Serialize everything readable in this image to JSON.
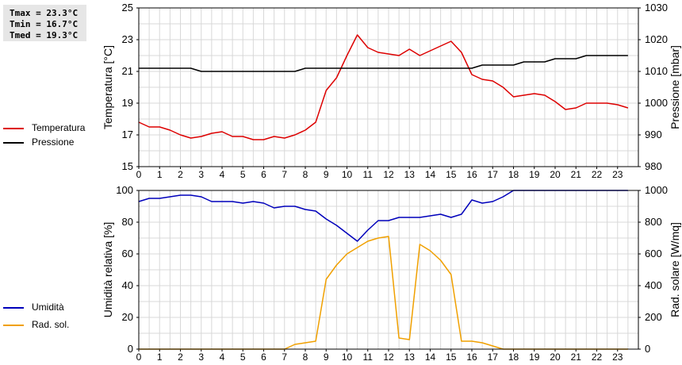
{
  "stats": {
    "tmax": "Tmax = 23.3°C",
    "tmin": "Tmin = 16.7°C",
    "tmed": "Tmed = 19.3°C"
  },
  "legend_top": [
    {
      "label": "Temperatura",
      "color": "#dd0000"
    },
    {
      "label": "Pressione",
      "color": "#000000"
    }
  ],
  "legend_bottom": [
    {
      "label": "Umidità",
      "color": "#0000bb"
    },
    {
      "label": "Rad. sol.",
      "color": "#f0a000"
    }
  ],
  "chart_data": [
    {
      "type": "line",
      "title": "",
      "xlabel": "",
      "ylabel": "Temperatura [°C]",
      "y2label": "Pressione [mbar]",
      "xlim": [
        0,
        24
      ],
      "ylim": [
        15,
        25
      ],
      "y2lim": [
        980,
        1030
      ],
      "xticks": [
        "0",
        "1",
        "2",
        "3",
        "4",
        "5",
        "6",
        "7",
        "8",
        "9",
        "10",
        "11",
        "12",
        "13",
        "14",
        "15",
        "16",
        "17",
        "18",
        "19",
        "20",
        "21",
        "22",
        "23"
      ],
      "yticks": [
        "15",
        "17",
        "19",
        "21",
        "23",
        "25"
      ],
      "y2ticks": [
        "980",
        "990",
        "1000",
        "1010",
        "1020",
        "1030"
      ],
      "grid": true,
      "series": [
        {
          "name": "Temperatura",
          "axis": "left",
          "color": "#dd0000",
          "x": [
            0,
            0.5,
            1,
            1.5,
            2,
            2.5,
            3,
            3.5,
            4,
            4.5,
            5,
            5.5,
            6,
            6.5,
            7,
            7.5,
            8,
            8.5,
            9,
            9.5,
            10,
            10.5,
            11,
            11.5,
            12,
            12.5,
            13,
            13.5,
            14,
            14.5,
            15,
            15.5,
            16,
            16.5,
            17,
            17.5,
            18,
            18.5,
            19,
            19.5,
            20,
            20.5,
            21,
            21.5,
            22,
            22.5,
            23,
            23.5
          ],
          "y": [
            17.8,
            17.5,
            17.5,
            17.3,
            17.0,
            16.8,
            16.9,
            17.1,
            17.2,
            16.9,
            16.9,
            16.7,
            16.7,
            16.9,
            16.8,
            17.0,
            17.3,
            17.8,
            19.8,
            20.6,
            22.0,
            23.3,
            22.5,
            22.2,
            22.1,
            22.0,
            22.4,
            22.0,
            22.3,
            22.6,
            22.9,
            22.2,
            20.8,
            20.5,
            20.4,
            20.0,
            19.4,
            19.5,
            19.6,
            19.5,
            19.1,
            18.6,
            18.7,
            19.0,
            19.0,
            19.0,
            18.9,
            18.7
          ]
        },
        {
          "name": "Pressione",
          "axis": "right",
          "color": "#000000",
          "x": [
            0,
            2.5,
            3,
            7.5,
            8,
            16,
            16.5,
            18,
            18.5,
            19.5,
            20,
            21,
            21.5,
            23.5
          ],
          "y": [
            1011,
            1011,
            1010,
            1010,
            1011,
            1011,
            1012,
            1012,
            1013,
            1013,
            1014,
            1014,
            1015,
            1015
          ]
        }
      ]
    },
    {
      "type": "line",
      "title": "",
      "xlabel": "",
      "ylabel": "Umidità relativa [%]",
      "y2label": "Rad. solare [W/mq]",
      "xlim": [
        0,
        24
      ],
      "ylim": [
        0,
        100
      ],
      "y2lim": [
        0,
        1000
      ],
      "xticks": [
        "0",
        "1",
        "2",
        "3",
        "4",
        "5",
        "6",
        "7",
        "8",
        "9",
        "10",
        "11",
        "12",
        "13",
        "14",
        "15",
        "16",
        "17",
        "18",
        "19",
        "20",
        "21",
        "22",
        "23"
      ],
      "yticks": [
        "0",
        "20",
        "40",
        "60",
        "80",
        "100"
      ],
      "y2ticks": [
        "0",
        "200",
        "400",
        "600",
        "800",
        "1000"
      ],
      "grid": true,
      "series": [
        {
          "name": "Umidità",
          "axis": "left",
          "color": "#0000bb",
          "x": [
            0,
            0.5,
            1,
            1.5,
            2,
            2.5,
            3,
            3.5,
            4,
            4.5,
            5,
            5.5,
            6,
            6.5,
            7,
            7.5,
            8,
            8.5,
            9,
            9.5,
            10,
            10.5,
            11,
            11.5,
            12,
            12.5,
            13,
            13.5,
            14,
            14.5,
            15,
            15.5,
            16,
            16.5,
            17,
            17.5,
            18,
            18.5,
            19,
            19.5,
            20,
            20.5,
            21,
            21.5,
            22,
            22.5,
            23,
            23.5
          ],
          "y": [
            93,
            95,
            95,
            96,
            97,
            97,
            96,
            93,
            93,
            93,
            92,
            93,
            92,
            89,
            90,
            90,
            88,
            87,
            82,
            78,
            73,
            68,
            75,
            81,
            81,
            83,
            83,
            83,
            84,
            85,
            83,
            85,
            94,
            92,
            93,
            96,
            100,
            100,
            100,
            100,
            100,
            100,
            100,
            100,
            100,
            100,
            100,
            100
          ]
        },
        {
          "name": "Rad. sol.",
          "axis": "right",
          "color": "#f0a000",
          "x": [
            0,
            0.5,
            1,
            1.5,
            2,
            2.5,
            3,
            3.5,
            4,
            4.5,
            5,
            5.5,
            6,
            6.5,
            7,
            7.5,
            8,
            8.5,
            9,
            9.5,
            10,
            10.5,
            11,
            11.5,
            12,
            12.5,
            13,
            13.5,
            14,
            14.5,
            15,
            15.5,
            16,
            16.5,
            17,
            17.5,
            18,
            18.5,
            19,
            19.5,
            20,
            20.5,
            21,
            21.5,
            22,
            22.5,
            23,
            23.5
          ],
          "y": [
            0,
            0,
            0,
            0,
            0,
            0,
            0,
            0,
            0,
            0,
            0,
            0,
            0,
            0,
            0,
            30,
            40,
            50,
            440,
            530,
            600,
            640,
            680,
            700,
            710,
            70,
            60,
            660,
            620,
            560,
            470,
            50,
            50,
            40,
            20,
            0,
            0,
            0,
            0,
            0,
            0,
            0,
            0,
            0,
            0,
            0,
            0,
            0
          ]
        }
      ]
    }
  ]
}
